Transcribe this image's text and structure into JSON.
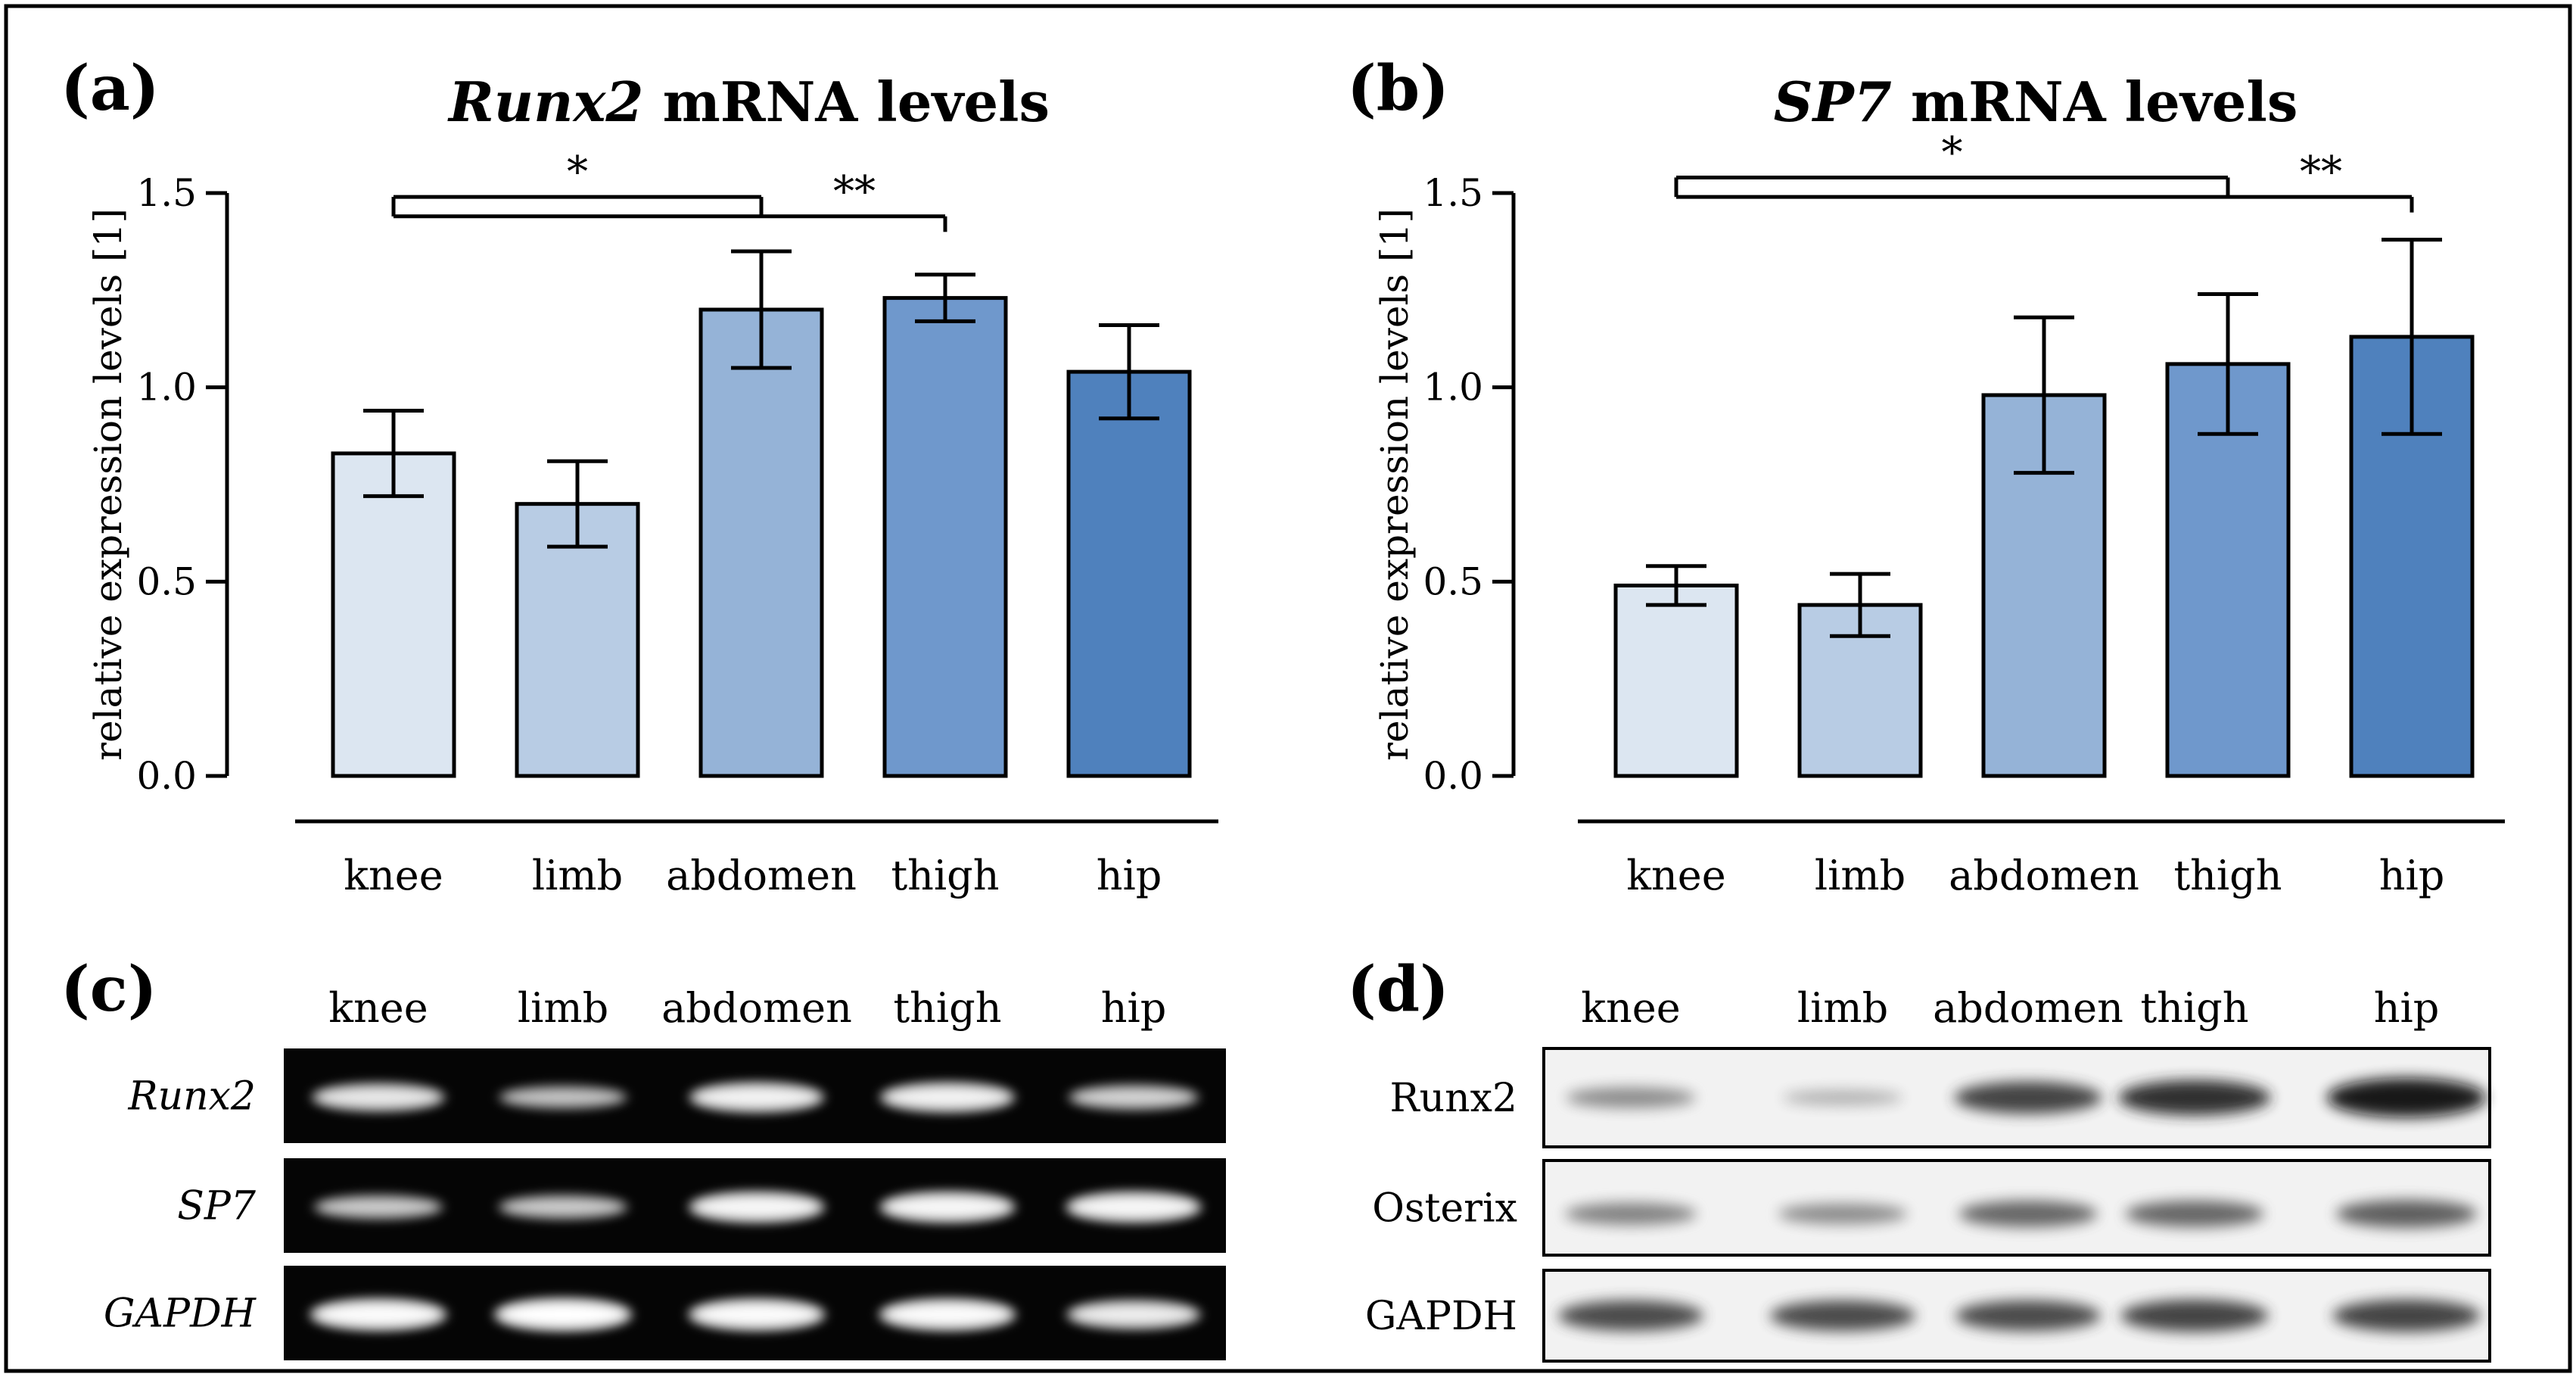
{
  "panels": {
    "a": {
      "label": "(a)"
    },
    "b": {
      "label": "(b)"
    },
    "c": {
      "label": "(c)"
    },
    "d": {
      "label": "(d)"
    }
  },
  "chart_data": [
    {
      "id": "a",
      "type": "bar",
      "title_italic": "Runx2",
      "title_rest": " mRNA levels",
      "xlabel": "",
      "ylabel": "relative expression levels [1]",
      "categories": [
        "knee",
        "limb",
        "abdomen",
        "thigh",
        "hip"
      ],
      "values": [
        0.83,
        0.7,
        1.2,
        1.23,
        1.04
      ],
      "errors": [
        0.11,
        0.11,
        0.15,
        0.06,
        0.12
      ],
      "colors": [
        "#dce6f1",
        "#b8cce4",
        "#95b3d7",
        "#6f98cc",
        "#4f81bd"
      ],
      "ylim": [
        0,
        1.5
      ],
      "yticks": [
        0.0,
        0.5,
        1.0,
        1.5
      ],
      "ytick_labels": [
        "0.0",
        "0.5",
        "1.0",
        "1.5"
      ],
      "significance": [
        {
          "from": 0,
          "to": 2,
          "label": "*",
          "y": 1.49,
          "tick_start": 1.44,
          "tick_end": 1.44
        },
        {
          "from": 0,
          "to": 3,
          "label": "**",
          "y": 1.44,
          "tick_start": 1.49,
          "tick_end": 1.4
        }
      ]
    },
    {
      "id": "b",
      "type": "bar",
      "title_italic": "SP7",
      "title_rest": " mRNA levels",
      "xlabel": "",
      "ylabel": "relative expression levels [1]",
      "categories": [
        "knee",
        "limb",
        "abdomen",
        "thigh",
        "hip"
      ],
      "values": [
        0.49,
        0.44,
        0.98,
        1.06,
        1.13
      ],
      "errors": [
        0.05,
        0.08,
        0.2,
        0.18,
        0.25
      ],
      "colors": [
        "#dce6f1",
        "#b8cce4",
        "#95b3d7",
        "#6f98cc",
        "#4f81bd"
      ],
      "ylim": [
        0,
        1.5
      ],
      "yticks": [
        0.0,
        0.5,
        1.0,
        1.5
      ],
      "ytick_labels": [
        "0.0",
        "0.5",
        "1.0",
        "1.5"
      ],
      "significance": [
        {
          "from": 0,
          "to": 3,
          "label": "*",
          "y": 1.54,
          "tick_start": 1.49,
          "tick_end": 1.49
        },
        {
          "from": 0,
          "to": 4,
          "label": "**",
          "y": 1.49,
          "tick_start": 1.54,
          "tick_end": 1.45
        }
      ]
    }
  ],
  "gel_c": {
    "lanes": [
      "knee",
      "limb",
      "abdomen",
      "thigh",
      "hip"
    ],
    "rows": [
      {
        "label": "Runx2",
        "italic": true,
        "intensity": [
          0.75,
          0.5,
          0.85,
          0.85,
          0.6
        ]
      },
      {
        "label": "SP7",
        "italic": true,
        "intensity": [
          0.55,
          0.55,
          0.9,
          0.9,
          0.9
        ]
      },
      {
        "label": "GAPDH",
        "italic": true,
        "intensity": [
          0.95,
          1.0,
          0.95,
          0.95,
          0.8
        ]
      }
    ]
  },
  "blot_d": {
    "lanes": [
      "knee",
      "limb",
      "abdomen",
      "thigh",
      "hip"
    ],
    "rows": [
      {
        "label": "Runx2",
        "italic": false,
        "intensity": [
          0.35,
          0.15,
          0.75,
          0.85,
          1.0
        ]
      },
      {
        "label": "Osterix",
        "italic": false,
        "intensity": [
          0.4,
          0.35,
          0.55,
          0.55,
          0.6
        ]
      },
      {
        "label": "GAPDH",
        "italic": false,
        "intensity": [
          0.7,
          0.7,
          0.7,
          0.75,
          0.75
        ]
      }
    ]
  }
}
